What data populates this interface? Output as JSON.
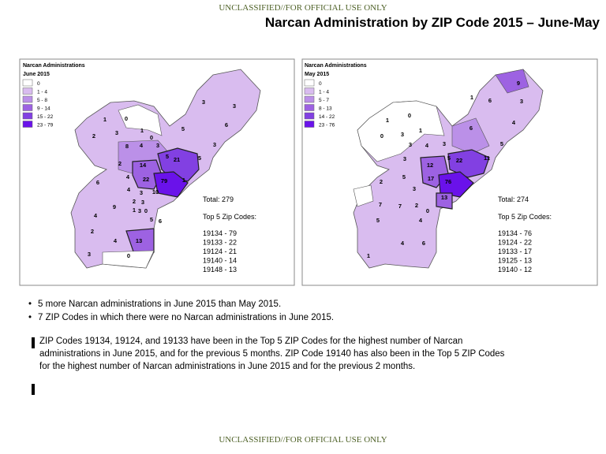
{
  "header": {
    "classification": "UNCLASSIFIED//FOR OFFICIAL USE ONLY"
  },
  "title": "Narcan Administration by ZIP Code 2015 – June-May",
  "maps": [
    {
      "legend_title": "Narcan Administrations",
      "legend_period": "June 2015",
      "legend": [
        {
          "label": "0",
          "color": "#ffffff"
        },
        {
          "label": "1 - 4",
          "color": "#d9bcef"
        },
        {
          "label": "5 - 8",
          "color": "#bb90e8"
        },
        {
          "label": "9 - 14",
          "color": "#9d62e2"
        },
        {
          "label": "15 - 22",
          "color": "#8240e2"
        },
        {
          "label": "23 - 79",
          "color": "#6a12ea"
        }
      ],
      "labels": [
        3,
        3,
        1,
        0,
        2,
        3,
        1,
        8,
        4,
        5,
        6,
        3,
        0,
        3,
        5,
        21,
        5,
        2,
        14,
        6,
        4,
        22,
        79,
        1,
        4,
        10,
        3,
        2,
        3,
        9,
        1,
        3,
        0,
        4,
        5,
        6,
        2,
        4,
        13,
        3,
        0
      ],
      "total": "Total: 279",
      "top5_heading": "Top 5 Zip Codes:",
      "top5": [
        "19134 - 79",
        "19133 - 22",
        "19124 - 21",
        "19140 - 14",
        "19148 - 13"
      ]
    },
    {
      "legend_title": "Narcan Administrations",
      "legend_period": "May 2015",
      "legend": [
        {
          "label": "0",
          "color": "#ffffff"
        },
        {
          "label": "1 - 4",
          "color": "#d9bcef"
        },
        {
          "label": "5 - 7",
          "color": "#bb90e8"
        },
        {
          "label": "8 - 13",
          "color": "#9d62e2"
        },
        {
          "label": "14 - 22",
          "color": "#8240e2"
        },
        {
          "label": "23 - 76",
          "color": "#6a12ea"
        }
      ],
      "labels": [
        9,
        1,
        3,
        6,
        1,
        0,
        0,
        3,
        1,
        3,
        4,
        3,
        6,
        4,
        5,
        5,
        22,
        11,
        12,
        3,
        2,
        5,
        17,
        76,
        3,
        13,
        7,
        7,
        2,
        0,
        5,
        4,
        4,
        6,
        1
      ],
      "total": "Total: 274",
      "top5_heading": "Top 5 Zip Codes:",
      "top5": [
        "19134 - 76",
        "19124 - 22",
        "19133 - 17",
        "19125 - 13",
        "19140 - 12"
      ]
    }
  ],
  "bullets": [
    "5 more Narcan administrations in June 2015 than May 2015.",
    "7 ZIP Codes in which there were no Narcan administrations in June 2015."
  ],
  "paragraph": "ZIP Codes 19134, 19124, and 19133 have been in the Top 5 ZIP Codes for the highest number of Narcan administrations  in June 2015, and for the previous 5 months.  ZIP Code 19140 has also been in the Top 5 ZIP Codes for the highest number of Narcan administrations in June 2015 and for the previous 2 months.",
  "footer": {
    "classification": "UNCLASSIFIED//FOR OFFICIAL USE ONLY"
  }
}
